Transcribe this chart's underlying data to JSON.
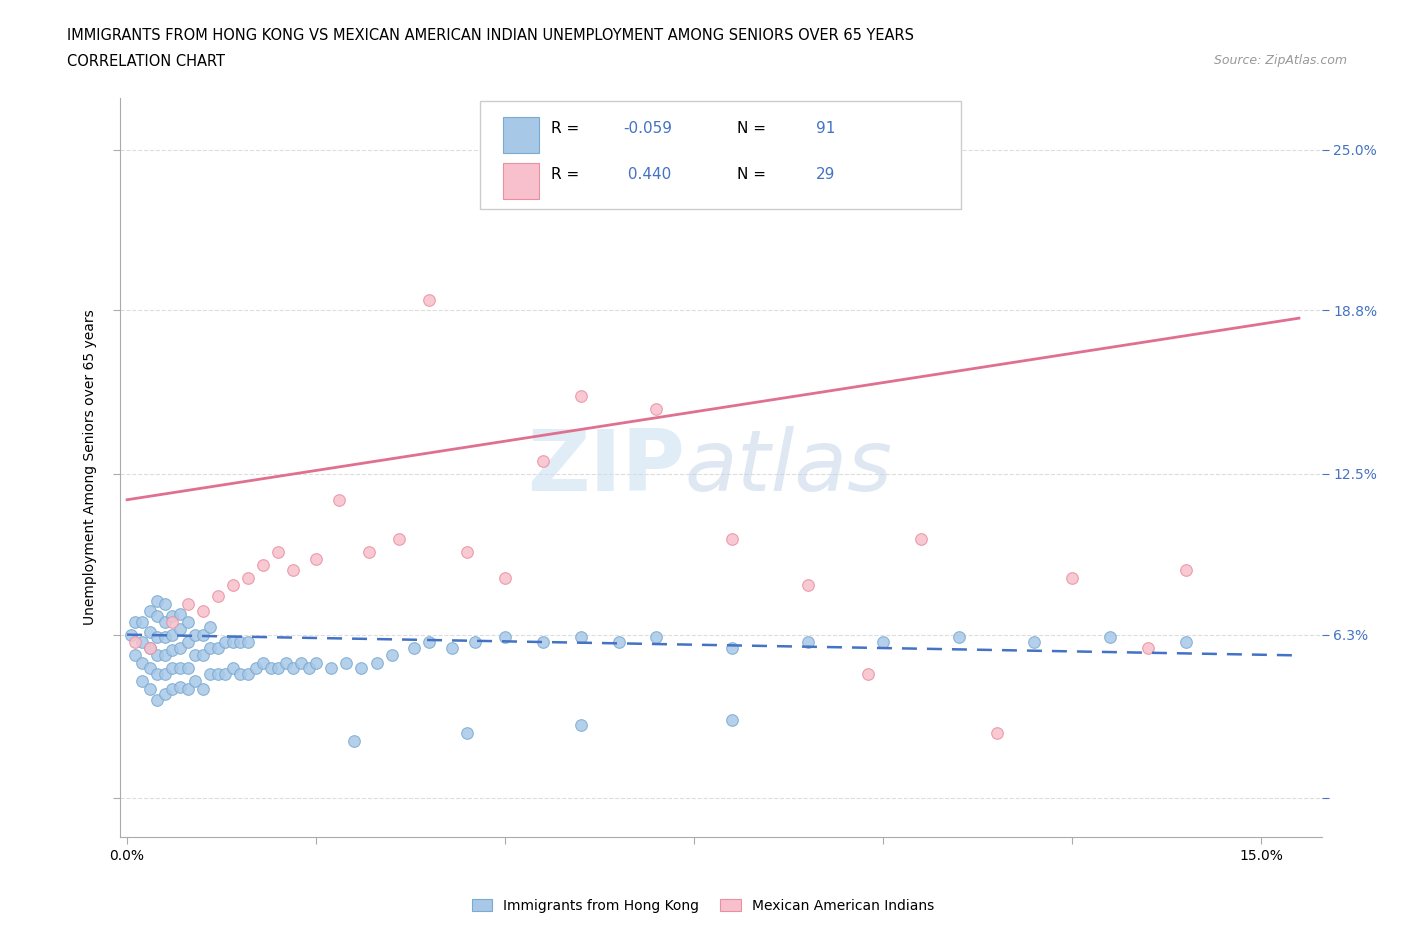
{
  "title_line1": "IMMIGRANTS FROM HONG KONG VS MEXICAN AMERICAN INDIAN UNEMPLOYMENT AMONG SENIORS OVER 65 YEARS",
  "title_line2": "CORRELATION CHART",
  "source_text": "Source: ZipAtlas.com",
  "watermark_zip": "ZIP",
  "watermark_atlas": "atlas",
  "ylabel": "Unemployment Among Seniors over 65 years",
  "xlim": [
    -0.001,
    0.158
  ],
  "ylim": [
    -0.015,
    0.27
  ],
  "blue_color": "#A8C8E8",
  "blue_edge_color": "#7AAAD0",
  "pink_color": "#F8C0CC",
  "pink_edge_color": "#E890A0",
  "blue_line_color": "#4472C4",
  "pink_line_color": "#E07090",
  "r_blue": -0.059,
  "n_blue": 91,
  "r_pink": 0.44,
  "n_pink": 29,
  "legend_label_blue": "Immigrants from Hong Kong",
  "legend_label_pink": "Mexican American Indians",
  "blue_scatter_x": [
    0.0005,
    0.001,
    0.001,
    0.002,
    0.002,
    0.002,
    0.002,
    0.003,
    0.003,
    0.003,
    0.003,
    0.003,
    0.004,
    0.004,
    0.004,
    0.004,
    0.004,
    0.004,
    0.005,
    0.005,
    0.005,
    0.005,
    0.005,
    0.005,
    0.006,
    0.006,
    0.006,
    0.006,
    0.006,
    0.007,
    0.007,
    0.007,
    0.007,
    0.007,
    0.008,
    0.008,
    0.008,
    0.008,
    0.009,
    0.009,
    0.009,
    0.01,
    0.01,
    0.01,
    0.011,
    0.011,
    0.011,
    0.012,
    0.012,
    0.013,
    0.013,
    0.014,
    0.014,
    0.015,
    0.015,
    0.016,
    0.016,
    0.017,
    0.018,
    0.019,
    0.02,
    0.021,
    0.022,
    0.023,
    0.024,
    0.025,
    0.027,
    0.029,
    0.031,
    0.033,
    0.035,
    0.038,
    0.04,
    0.043,
    0.046,
    0.05,
    0.055,
    0.06,
    0.065,
    0.07,
    0.08,
    0.09,
    0.1,
    0.11,
    0.12,
    0.13,
    0.14,
    0.08,
    0.06,
    0.045,
    0.03
  ],
  "blue_scatter_y": [
    0.063,
    0.055,
    0.068,
    0.045,
    0.052,
    0.06,
    0.068,
    0.042,
    0.05,
    0.058,
    0.064,
    0.072,
    0.038,
    0.048,
    0.055,
    0.062,
    0.07,
    0.076,
    0.04,
    0.048,
    0.055,
    0.062,
    0.068,
    0.075,
    0.042,
    0.05,
    0.057,
    0.063,
    0.07,
    0.043,
    0.05,
    0.058,
    0.065,
    0.071,
    0.042,
    0.05,
    0.06,
    0.068,
    0.045,
    0.055,
    0.063,
    0.042,
    0.055,
    0.063,
    0.048,
    0.058,
    0.066,
    0.048,
    0.058,
    0.048,
    0.06,
    0.05,
    0.06,
    0.048,
    0.06,
    0.048,
    0.06,
    0.05,
    0.052,
    0.05,
    0.05,
    0.052,
    0.05,
    0.052,
    0.05,
    0.052,
    0.05,
    0.052,
    0.05,
    0.052,
    0.055,
    0.058,
    0.06,
    0.058,
    0.06,
    0.062,
    0.06,
    0.062,
    0.06,
    0.062,
    0.058,
    0.06,
    0.06,
    0.062,
    0.06,
    0.062,
    0.06,
    0.03,
    0.028,
    0.025,
    0.022
  ],
  "pink_scatter_x": [
    0.001,
    0.003,
    0.006,
    0.008,
    0.01,
    0.012,
    0.014,
    0.016,
    0.018,
    0.02,
    0.022,
    0.025,
    0.028,
    0.032,
    0.036,
    0.04,
    0.045,
    0.05,
    0.055,
    0.06,
    0.07,
    0.08,
    0.09,
    0.098,
    0.105,
    0.115,
    0.125,
    0.135,
    0.14
  ],
  "pink_scatter_y": [
    0.06,
    0.058,
    0.068,
    0.075,
    0.072,
    0.078,
    0.082,
    0.085,
    0.09,
    0.095,
    0.088,
    0.092,
    0.115,
    0.095,
    0.1,
    0.192,
    0.095,
    0.085,
    0.13,
    0.155,
    0.15,
    0.1,
    0.082,
    0.048,
    0.1,
    0.025,
    0.085,
    0.058,
    0.088
  ],
  "blue_trend_x": [
    0.0,
    0.155
  ],
  "blue_trend_y": [
    0.063,
    0.055
  ],
  "pink_trend_x": [
    0.0,
    0.155
  ],
  "pink_trend_y": [
    0.115,
    0.185
  ],
  "grid_color": "#DDDDDD",
  "background_color": "#FFFFFF",
  "right_axis_color": "#4472C4",
  "y_ticks": [
    0.0,
    0.063,
    0.125,
    0.188,
    0.25
  ],
  "y_tick_labels_right": [
    "",
    "6.3%",
    "12.5%",
    "18.8%",
    "25.0%"
  ],
  "x_ticks": [
    0.0,
    0.025,
    0.05,
    0.075,
    0.1,
    0.125,
    0.15
  ],
  "x_tick_labels": [
    "0.0%",
    "",
    "",
    "",
    "",
    "",
    "15.0%"
  ]
}
